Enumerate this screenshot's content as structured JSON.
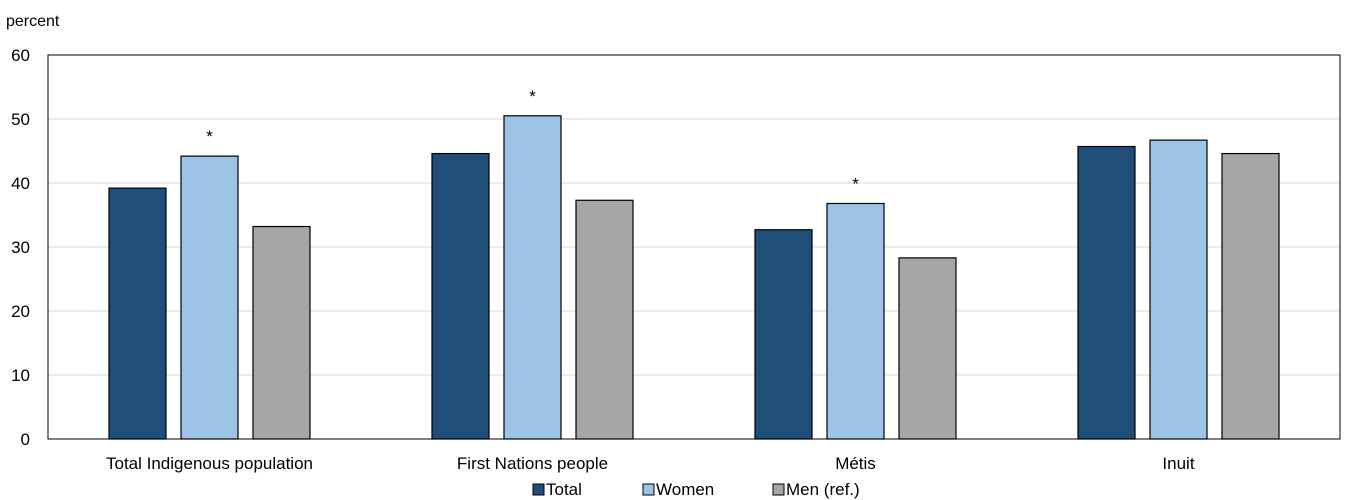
{
  "chart_data": {
    "type": "bar",
    "ylabel": "percent",
    "ylim": [
      0,
      60
    ],
    "yticks": [
      0,
      10,
      20,
      30,
      40,
      50,
      60
    ],
    "grid": true,
    "legend_position": "bottom",
    "categories": [
      "Total Indigenous population",
      "First Nations people",
      "Métis",
      "Inuit"
    ],
    "series": [
      {
        "name": "Total",
        "color": "#1f4e79",
        "values": [
          39.2,
          44.6,
          32.7,
          45.7
        ]
      },
      {
        "name": "Women",
        "color": "#9dc3e6",
        "values": [
          44.2,
          50.5,
          36.8,
          46.7
        ]
      },
      {
        "name": "Men (ref.)",
        "color": "#a6a6a6",
        "values": [
          33.2,
          37.3,
          28.3,
          44.6
        ]
      }
    ],
    "annotations": [
      {
        "series": "Women",
        "category": "Total Indigenous population",
        "text": "*"
      },
      {
        "series": "Women",
        "category": "First Nations people",
        "text": "*"
      },
      {
        "series": "Women",
        "category": "Métis",
        "text": "*"
      }
    ]
  }
}
